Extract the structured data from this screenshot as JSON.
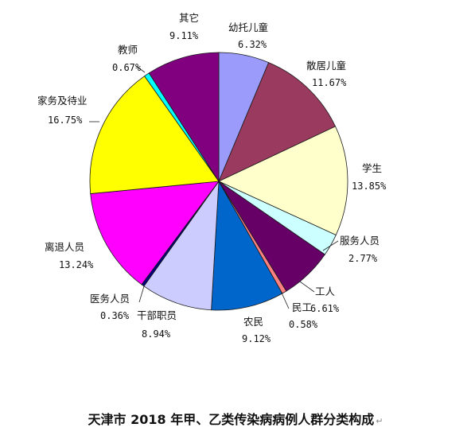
{
  "chart_data": {
    "type": "pie",
    "title": "天津市 2018 年甲、乙类传染病病例人群分类构成",
    "title_mark": "↵",
    "slices": [
      {
        "label": "幼托儿童",
        "value_text": "6.32%",
        "value": 6.32,
        "color": "#9B9BFB"
      },
      {
        "label": "散居儿童",
        "value_text": "11.67%",
        "value": 11.67,
        "color": "#993A5E"
      },
      {
        "label": "学生",
        "value_text": "13.85%",
        "value": 13.85,
        "color": "#FFFFCC"
      },
      {
        "label": "服务人员",
        "value_text": "2.77%",
        "value": 2.77,
        "color": "#CCFFFF"
      },
      {
        "label": "工人",
        "value_text": "6.61%",
        "value": 6.61,
        "color": "#660066"
      },
      {
        "label": "民工",
        "value_text": "0.58%",
        "value": 0.58,
        "color": "#FF8080"
      },
      {
        "label": "农民",
        "value_text": "9.12%",
        "value": 9.12,
        "color": "#0066CC"
      },
      {
        "label": "干部职员",
        "value_text": "8.94%",
        "value": 8.94,
        "color": "#CCCCFF"
      },
      {
        "label": "医务人员",
        "value_text": "0.36%",
        "value": 0.36,
        "color": "#000080"
      },
      {
        "label": "离退人员",
        "value_text": "13.24%",
        "value": 13.24,
        "color": "#FF00FF"
      },
      {
        "label": "家务及待业",
        "value_text": "16.75%",
        "value": 16.75,
        "color": "#FFFF00"
      },
      {
        "label": "教师",
        "value_text": "0.67%",
        "value": 0.67,
        "color": "#00FFFF"
      },
      {
        "label": "其它",
        "value_text": "9.11%",
        "value": 9.11,
        "color": "#800080"
      }
    ]
  }
}
